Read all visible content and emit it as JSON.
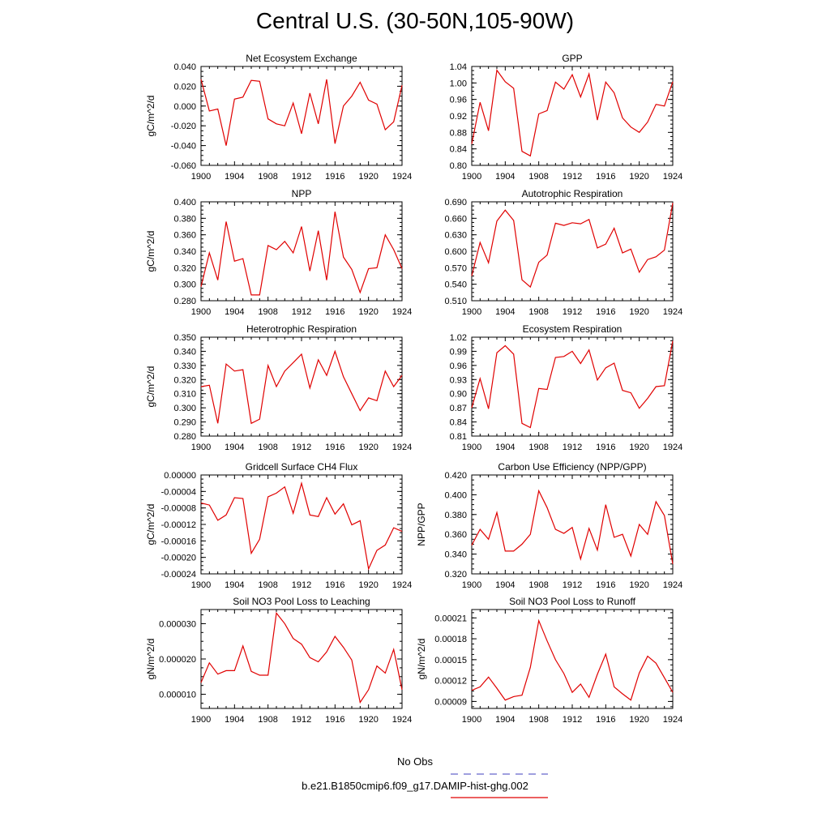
{
  "title": "Central U.S. (30-50N,105-90W)",
  "legend": {
    "obs_label": "No Obs",
    "obs_color": "#6666cc",
    "model_label": "b.e21.B1850cmip6.f09_g17.DAMIP-hist-ghg.002",
    "model_color": "#e00000"
  },
  "chart_data": [
    {
      "type": "line",
      "title": "Net Ecosystem Exchange",
      "ylabel": "gC/m^2/d",
      "xlim": [
        1900,
        1924
      ],
      "ylim": [
        -0.06,
        0.04
      ],
      "yticks": [
        "-0.060",
        "-0.040",
        "-0.020",
        "0.000",
        "0.020",
        "0.040"
      ],
      "ytick_values": [
        -0.06,
        -0.04,
        -0.02,
        0,
        0.02,
        0.04
      ],
      "xticks": [
        "1900",
        "1904",
        "1908",
        "1912",
        "1916",
        "1920",
        "1924"
      ],
      "x": [
        1900,
        1901,
        1902,
        1903,
        1904,
        1905,
        1906,
        1907,
        1908,
        1909,
        1910,
        1911,
        1912,
        1913,
        1914,
        1915,
        1916,
        1917,
        1918,
        1919,
        1920,
        1921,
        1922,
        1923,
        1924
      ],
      "values": [
        0.027,
        -0.005,
        -0.003,
        -0.04,
        0.007,
        0.009,
        0.026,
        0.025,
        -0.013,
        -0.018,
        -0.02,
        0.003,
        -0.028,
        0.013,
        -0.018,
        0.027,
        -0.038,
        0.0,
        0.01,
        0.024,
        0.006,
        0.002,
        -0.024,
        -0.016,
        0.021
      ]
    },
    {
      "type": "line",
      "title": "GPP",
      "ylabel": "",
      "xlim": [
        1900,
        1924
      ],
      "ylim": [
        0.8,
        1.04
      ],
      "yticks": [
        "0.80",
        "0.84",
        "0.88",
        "0.92",
        "0.96",
        "1.00",
        "1.04"
      ],
      "ytick_values": [
        0.8,
        0.84,
        0.88,
        0.92,
        0.96,
        1.0,
        1.04
      ],
      "xticks": [
        "1900",
        "1904",
        "1908",
        "1912",
        "1916",
        "1920",
        "1924"
      ],
      "x": [
        1900,
        1901,
        1902,
        1903,
        1904,
        1905,
        1906,
        1907,
        1908,
        1909,
        1910,
        1911,
        1912,
        1913,
        1914,
        1915,
        1916,
        1917,
        1918,
        1919,
        1920,
        1921,
        1922,
        1923,
        1924
      ],
      "values": [
        0.852,
        0.953,
        0.884,
        1.031,
        1.003,
        0.987,
        0.834,
        0.823,
        0.925,
        0.933,
        1.002,
        0.985,
        1.02,
        0.966,
        1.022,
        0.91,
        1.002,
        0.976,
        0.915,
        0.893,
        0.88,
        0.905,
        0.948,
        0.944,
        1.003
      ]
    },
    {
      "type": "line",
      "title": "NPP",
      "ylabel": "gC/m^2/d",
      "xlim": [
        1900,
        1924
      ],
      "ylim": [
        0.28,
        0.4
      ],
      "yticks": [
        "0.280",
        "0.300",
        "0.320",
        "0.340",
        "0.360",
        "0.380",
        "0.400"
      ],
      "ytick_values": [
        0.28,
        0.3,
        0.32,
        0.34,
        0.36,
        0.38,
        0.4
      ],
      "xticks": [
        "1900",
        "1904",
        "1908",
        "1912",
        "1916",
        "1920",
        "1924"
      ],
      "x": [
        1900,
        1901,
        1902,
        1903,
        1904,
        1905,
        1906,
        1907,
        1908,
        1909,
        1910,
        1911,
        1912,
        1913,
        1914,
        1915,
        1916,
        1917,
        1918,
        1919,
        1920,
        1921,
        1922,
        1923,
        1924
      ],
      "values": [
        0.297,
        0.338,
        0.305,
        0.376,
        0.328,
        0.331,
        0.287,
        0.287,
        0.347,
        0.342,
        0.352,
        0.338,
        0.37,
        0.316,
        0.365,
        0.305,
        0.388,
        0.333,
        0.318,
        0.29,
        0.319,
        0.32,
        0.36,
        0.342,
        0.319
      ]
    },
    {
      "type": "line",
      "title": "Autotrophic Respiration",
      "ylabel": "",
      "xlim": [
        1900,
        1924
      ],
      "ylim": [
        0.51,
        0.69
      ],
      "yticks": [
        "0.510",
        "0.540",
        "0.570",
        "0.600",
        "0.630",
        "0.660",
        "0.690"
      ],
      "ytick_values": [
        0.51,
        0.54,
        0.57,
        0.6,
        0.63,
        0.66,
        0.69
      ],
      "xticks": [
        "1900",
        "1904",
        "1908",
        "1912",
        "1916",
        "1920",
        "1924"
      ],
      "x": [
        1900,
        1901,
        1902,
        1903,
        1904,
        1905,
        1906,
        1907,
        1908,
        1909,
        1910,
        1911,
        1912,
        1913,
        1914,
        1915,
        1916,
        1917,
        1918,
        1919,
        1920,
        1921,
        1922,
        1923,
        1924
      ],
      "values": [
        0.555,
        0.616,
        0.579,
        0.655,
        0.675,
        0.656,
        0.548,
        0.535,
        0.58,
        0.593,
        0.651,
        0.647,
        0.652,
        0.65,
        0.658,
        0.606,
        0.613,
        0.642,
        0.597,
        0.604,
        0.562,
        0.585,
        0.59,
        0.602,
        0.688
      ]
    },
    {
      "type": "line",
      "title": "Heterotrophic Respiration",
      "ylabel": "gC/m^2/d",
      "xlim": [
        1900,
        1924
      ],
      "ylim": [
        0.28,
        0.35
      ],
      "yticks": [
        "0.280",
        "0.290",
        "0.300",
        "0.310",
        "0.320",
        "0.330",
        "0.340",
        "0.350"
      ],
      "ytick_values": [
        0.28,
        0.29,
        0.3,
        0.31,
        0.32,
        0.33,
        0.34,
        0.35
      ],
      "xticks": [
        "1900",
        "1904",
        "1908",
        "1912",
        "1916",
        "1920",
        "1924"
      ],
      "x": [
        1900,
        1901,
        1902,
        1903,
        1904,
        1905,
        1906,
        1907,
        1908,
        1909,
        1910,
        1911,
        1912,
        1913,
        1914,
        1915,
        1916,
        1917,
        1918,
        1919,
        1920,
        1921,
        1922,
        1923,
        1924
      ],
      "values": [
        0.315,
        0.316,
        0.289,
        0.331,
        0.326,
        0.327,
        0.289,
        0.292,
        0.33,
        0.315,
        0.326,
        0.332,
        0.338,
        0.314,
        0.334,
        0.323,
        0.34,
        0.322,
        0.31,
        0.298,
        0.307,
        0.305,
        0.326,
        0.315,
        0.323
      ]
    },
    {
      "type": "line",
      "title": "Ecosystem Respiration",
      "ylabel": "",
      "xlim": [
        1900,
        1924
      ],
      "ylim": [
        0.81,
        1.02
      ],
      "yticks": [
        "0.81",
        "0.84",
        "0.87",
        "0.90",
        "0.93",
        "0.96",
        "0.99",
        "1.02"
      ],
      "ytick_values": [
        0.81,
        0.84,
        0.87,
        0.9,
        0.93,
        0.96,
        0.99,
        1.02
      ],
      "xticks": [
        "1900",
        "1904",
        "1908",
        "1912",
        "1916",
        "1920",
        "1924"
      ],
      "x": [
        1900,
        1901,
        1902,
        1903,
        1904,
        1905,
        1906,
        1907,
        1908,
        1909,
        1910,
        1911,
        1912,
        1913,
        1914,
        1915,
        1916,
        1917,
        1918,
        1919,
        1920,
        1921,
        1922,
        1923,
        1924
      ],
      "values": [
        0.87,
        0.932,
        0.868,
        0.987,
        1.002,
        0.984,
        0.837,
        0.828,
        0.911,
        0.909,
        0.977,
        0.979,
        0.99,
        0.964,
        0.993,
        0.929,
        0.955,
        0.965,
        0.907,
        0.902,
        0.869,
        0.89,
        0.915,
        0.917,
        1.012
      ]
    },
    {
      "type": "line",
      "title": "Gridcell Surface CH4 Flux",
      "ylabel": "gC/m^2/d",
      "xlim": [
        1900,
        1924
      ],
      "ylim": [
        -0.00024,
        0.0
      ],
      "yticks": [
        "-0.00024",
        "-0.00020",
        "-0.00016",
        "-0.00012",
        "-0.00008",
        "-0.00004",
        "0.00000"
      ],
      "ytick_values": [
        -0.00024,
        -0.0002,
        -0.00016,
        -0.00012,
        -8e-05,
        -4e-05,
        0.0
      ],
      "xticks": [
        "1900",
        "1904",
        "1908",
        "1912",
        "1916",
        "1920",
        "1924"
      ],
      "x": [
        1900,
        1901,
        1902,
        1903,
        1904,
        1905,
        1906,
        1907,
        1908,
        1909,
        1910,
        1911,
        1912,
        1913,
        1914,
        1915,
        1916,
        1917,
        1918,
        1919,
        1920,
        1921,
        1922,
        1923,
        1924
      ],
      "values": [
        -6.8e-05,
        -7.3e-05,
        -0.00011,
        -9.7e-05,
        -5.5e-05,
        -5.7e-05,
        -0.00019,
        -0.000156,
        -5.3e-05,
        -4.4e-05,
        -2.9e-05,
        -9.3e-05,
        -2e-05,
        -9.7e-05,
        -0.000101,
        -5.5e-05,
        -9.5e-05,
        -7e-05,
        -0.000121,
        -0.000111,
        -0.000228,
        -0.000183,
        -0.00017,
        -0.000128,
        -0.000137
      ]
    },
    {
      "type": "line",
      "title": "Carbon Use Efficiency (NPP/GPP)",
      "ylabel": "NPP/GPP",
      "xlim": [
        1900,
        1924
      ],
      "ylim": [
        0.32,
        0.42
      ],
      "yticks": [
        "0.320",
        "0.340",
        "0.360",
        "0.380",
        "0.400",
        "0.420"
      ],
      "ytick_values": [
        0.32,
        0.34,
        0.36,
        0.38,
        0.4,
        0.42
      ],
      "xticks": [
        "1900",
        "1904",
        "1908",
        "1912",
        "1916",
        "1920",
        "1924"
      ],
      "x": [
        1900,
        1901,
        1902,
        1903,
        1904,
        1905,
        1906,
        1907,
        1908,
        1909,
        1910,
        1911,
        1912,
        1913,
        1914,
        1915,
        1916,
        1917,
        1918,
        1919,
        1920,
        1921,
        1922,
        1923,
        1924
      ],
      "values": [
        0.349,
        0.365,
        0.355,
        0.382,
        0.343,
        0.343,
        0.35,
        0.36,
        0.404,
        0.387,
        0.365,
        0.361,
        0.367,
        0.335,
        0.366,
        0.344,
        0.39,
        0.357,
        0.36,
        0.338,
        0.37,
        0.36,
        0.393,
        0.379,
        0.33
      ]
    },
    {
      "type": "line",
      "title": "Soil NO3 Pool Loss to Leaching",
      "ylabel": "gN/m^2/d",
      "xlim": [
        1900,
        1924
      ],
      "ylim": [
        6e-06,
        3.4e-05
      ],
      "yticks": [
        "0.000010",
        "0.000020",
        "0.000030"
      ],
      "ytick_values": [
        1e-05,
        2e-05,
        3e-05
      ],
      "xticks": [
        "1900",
        "1904",
        "1908",
        "1912",
        "1916",
        "1920",
        "1924"
      ],
      "x": [
        1900,
        1901,
        1902,
        1903,
        1904,
        1905,
        1906,
        1907,
        1908,
        1909,
        1910,
        1911,
        1912,
        1913,
        1914,
        1915,
        1916,
        1917,
        1918,
        1919,
        1920,
        1921,
        1922,
        1923,
        1924
      ],
      "values": [
        1.33e-05,
        1.89e-05,
        1.57e-05,
        1.67e-05,
        1.67e-05,
        2.37e-05,
        1.65e-05,
        1.54e-05,
        1.54e-05,
        3.3e-05,
        3e-05,
        2.58e-05,
        2.42e-05,
        2.04e-05,
        1.92e-05,
        2.2e-05,
        2.64e-05,
        2.33e-05,
        1.97e-05,
        7.7e-06,
        1.13e-05,
        1.8e-05,
        1.6e-05,
        2.27e-05,
        1.13e-05
      ]
    },
    {
      "type": "line",
      "title": "Soil NO3 Pool Loss to Runoff",
      "ylabel": "gN/m^2/d",
      "xlim": [
        1900,
        1924
      ],
      "ylim": [
        8e-05,
        0.000222
      ],
      "yticks": [
        "0.00009",
        "0.00012",
        "0.00015",
        "0.00018",
        "0.00021"
      ],
      "ytick_values": [
        9e-05,
        0.00012,
        0.00015,
        0.00018,
        0.00021
      ],
      "xticks": [
        "1900",
        "1904",
        "1908",
        "1912",
        "1916",
        "1920",
        "1924"
      ],
      "x": [
        1900,
        1901,
        1902,
        1903,
        1904,
        1905,
        1906,
        1907,
        1908,
        1909,
        1910,
        1911,
        1912,
        1913,
        1914,
        1915,
        1916,
        1917,
        1918,
        1919,
        1920,
        1921,
        1922,
        1923,
        1924
      ],
      "values": [
        0.000106,
        0.000111,
        0.000125,
        0.000109,
        9.2e-05,
        9.7e-05,
        9.9e-05,
        0.000139,
        0.000206,
        0.000177,
        0.00015,
        0.00013,
        0.000103,
        0.000115,
        9.6e-05,
        0.000129,
        0.000158,
        0.000111,
        0.000101,
        9.2e-05,
        0.000131,
        0.000155,
        0.000145,
        0.000124,
        0.000103
      ]
    }
  ]
}
